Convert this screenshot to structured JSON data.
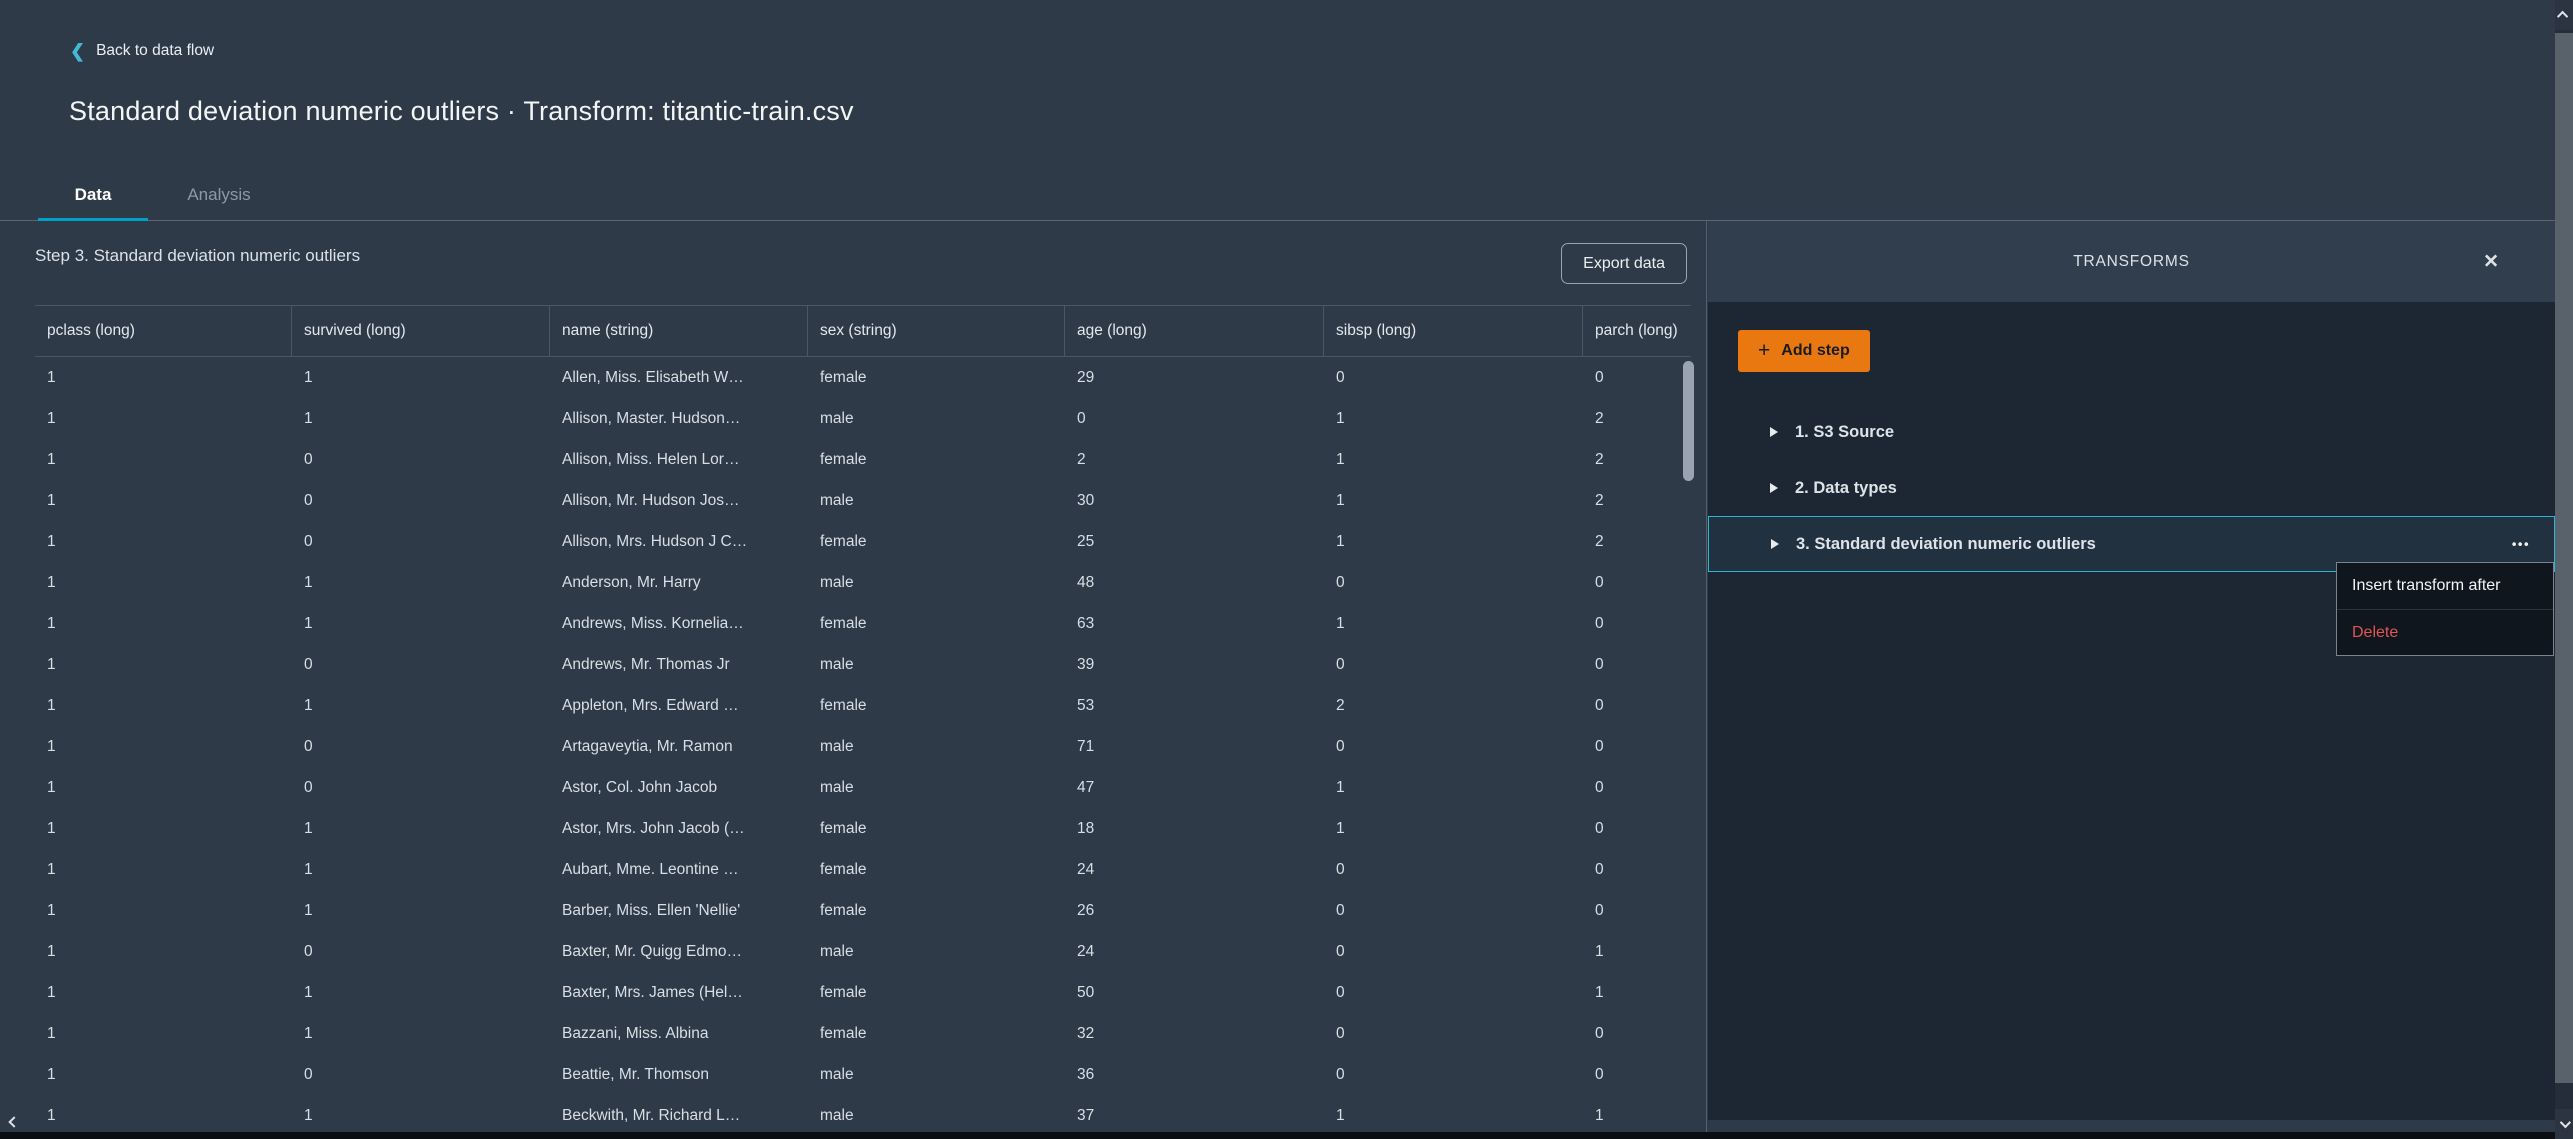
{
  "header": {
    "back_link": "Back to data flow",
    "title": "Standard deviation numeric outliers · Transform: titantic-train.csv"
  },
  "tabs": [
    {
      "label": "Data",
      "active": true
    },
    {
      "label": "Analysis",
      "active": false
    }
  ],
  "toolbar": {
    "step_title": "Step 3. Standard deviation numeric outliers",
    "export_label": "Export data"
  },
  "table": {
    "columns": [
      "pclass (long)",
      "survived (long)",
      "name (string)",
      "sex (string)",
      "age (long)",
      "sibsp (long)",
      "parch (long)"
    ],
    "rows": [
      [
        "1",
        "1",
        "Allen, Miss. Elisabeth W…",
        "female",
        "29",
        "0",
        "0"
      ],
      [
        "1",
        "1",
        "Allison, Master. Hudson…",
        "male",
        "0",
        "1",
        "2"
      ],
      [
        "1",
        "0",
        "Allison, Miss. Helen Lor…",
        "female",
        "2",
        "1",
        "2"
      ],
      [
        "1",
        "0",
        "Allison, Mr. Hudson Jos…",
        "male",
        "30",
        "1",
        "2"
      ],
      [
        "1",
        "0",
        "Allison, Mrs. Hudson J C…",
        "female",
        "25",
        "1",
        "2"
      ],
      [
        "1",
        "1",
        "Anderson, Mr. Harry",
        "male",
        "48",
        "0",
        "0"
      ],
      [
        "1",
        "1",
        "Andrews, Miss. Kornelia…",
        "female",
        "63",
        "1",
        "0"
      ],
      [
        "1",
        "0",
        "Andrews, Mr. Thomas Jr",
        "male",
        "39",
        "0",
        "0"
      ],
      [
        "1",
        "1",
        "Appleton, Mrs. Edward …",
        "female",
        "53",
        "2",
        "0"
      ],
      [
        "1",
        "0",
        "Artagaveytia, Mr. Ramon",
        "male",
        "71",
        "0",
        "0"
      ],
      [
        "1",
        "0",
        "Astor, Col. John Jacob",
        "male",
        "47",
        "1",
        "0"
      ],
      [
        "1",
        "1",
        "Astor, Mrs. John Jacob (…",
        "female",
        "18",
        "1",
        "0"
      ],
      [
        "1",
        "1",
        "Aubart, Mme. Leontine …",
        "female",
        "24",
        "0",
        "0"
      ],
      [
        "1",
        "1",
        "Barber, Miss. Ellen 'Nellie'",
        "female",
        "26",
        "0",
        "0"
      ],
      [
        "1",
        "0",
        "Baxter, Mr. Quigg Edmo…",
        "male",
        "24",
        "0",
        "1"
      ],
      [
        "1",
        "1",
        "Baxter, Mrs. James (Hel…",
        "female",
        "50",
        "0",
        "1"
      ],
      [
        "1",
        "1",
        "Bazzani, Miss. Albina",
        "female",
        "32",
        "0",
        "0"
      ],
      [
        "1",
        "0",
        "Beattie, Mr. Thomson",
        "male",
        "36",
        "0",
        "0"
      ],
      [
        "1",
        "1",
        "Beckwith, Mr. Richard L…",
        "male",
        "37",
        "1",
        "1"
      ]
    ]
  },
  "transforms_panel": {
    "title": "TRANSFORMS",
    "add_step_label": "Add step",
    "steps": [
      {
        "label": "1. S3 Source",
        "selected": false
      },
      {
        "label": "2. Data types",
        "selected": false
      },
      {
        "label": "3. Standard deviation numeric outliers",
        "selected": true
      }
    ],
    "menu": {
      "items": [
        {
          "label": "Insert transform after",
          "danger": false
        },
        {
          "label": "Delete",
          "danger": true
        }
      ]
    }
  },
  "icons": {
    "back_chevron": "❮",
    "close": "✕",
    "plus": "+",
    "ellipsis": "•••"
  },
  "colors": {
    "accent_cyan": "#00a1c9",
    "selection_border": "#2cb6d6",
    "back_chevron_teal": "#44b9d6",
    "primary_orange": "#e8780f",
    "danger_red": "#e05555"
  }
}
